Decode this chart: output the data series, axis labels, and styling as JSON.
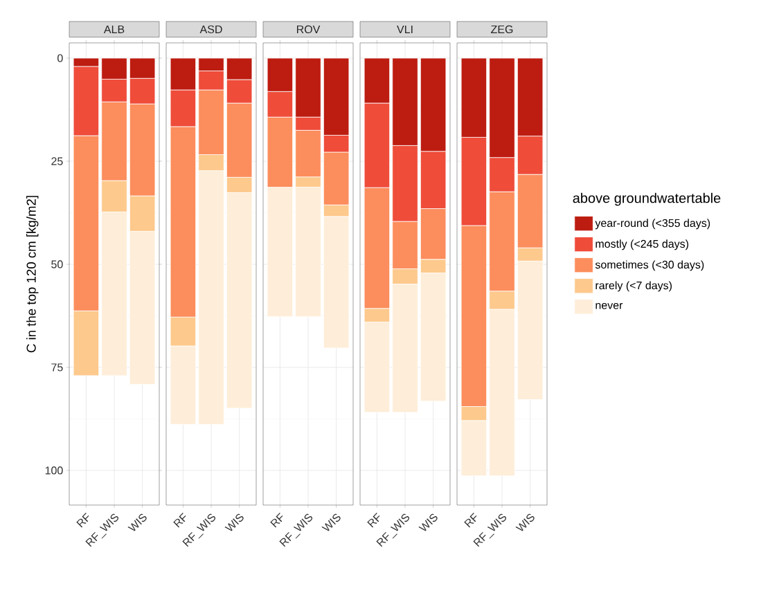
{
  "chart_data": [
    {
      "type": "bar",
      "stacked": true,
      "title": "ALB",
      "ylabel": "C in the top 120 cm [kg/m2]",
      "categories": [
        "RF",
        "RF_WIS",
        "WIS"
      ],
      "ylim": [
        108.4,
        -3.7
      ],
      "yticks": [
        0,
        25,
        50,
        75,
        100
      ],
      "grid": true,
      "legend": false,
      "series": [
        {
          "color": "#bd1c11",
          "values": [
            2.0,
            5.1,
            4.9
          ]
        },
        {
          "color": "#ef4c3a",
          "values": [
            16.8,
            5.5,
            6.2
          ]
        },
        {
          "color": "#fc8d5c",
          "values": [
            42.5,
            19.1,
            22.3
          ]
        },
        {
          "color": "#fdc98c",
          "values": [
            15.7,
            7.6,
            8.6
          ]
        },
        {
          "color": "#feedd8",
          "values": [
            null,
            39.7,
            37.1
          ]
        }
      ]
    },
    {
      "type": "bar",
      "stacked": true,
      "title": "ASD",
      "categories": [
        "RF",
        "RF_WIS",
        "WIS"
      ],
      "ylim": [
        108.4,
        -3.7
      ],
      "yticks": [
        0,
        25,
        50,
        75,
        100
      ],
      "grid": true,
      "legend": false,
      "tick_labels": "x",
      "series": [
        {
          "color": "#bd1c11",
          "values": [
            7.7,
            3.1,
            5.2
          ]
        },
        {
          "color": "#ef4c3a",
          "values": [
            8.9,
            4.6,
            5.7
          ]
        },
        {
          "color": "#fc8d5c",
          "values": [
            46.2,
            15.7,
            18.0
          ]
        },
        {
          "color": "#fdc98c",
          "values": [
            7.0,
            3.9,
            3.7
          ]
        },
        {
          "color": "#feedd8",
          "values": [
            19.0,
            61.5,
            52.3
          ]
        }
      ]
    },
    {
      "type": "bar",
      "stacked": true,
      "title": "ROV",
      "categories": [
        "RF",
        "RF_WIS",
        "WIS"
      ],
      "ylim": [
        108.4,
        -3.7
      ],
      "yticks": [
        0,
        25,
        50,
        75,
        100
      ],
      "grid": true,
      "legend": false,
      "tick_labels": "x",
      "series": [
        {
          "color": "#bd1c11",
          "values": [
            8.1,
            14.3,
            18.7
          ]
        },
        {
          "color": "#ef4c3a",
          "values": [
            6.2,
            3.2,
            4.1
          ]
        },
        {
          "color": "#fc8d5c",
          "values": [
            17.0,
            11.3,
            12.8
          ]
        },
        {
          "color": "#fdc98c",
          "values": [
            null,
            2.5,
            2.8
          ]
        },
        {
          "color": "#feedd8",
          "values": [
            31.4,
            31.4,
            31.9
          ]
        }
      ]
    },
    {
      "type": "bar",
      "stacked": true,
      "title": "VLI",
      "categories": [
        "RF",
        "RF_WIS",
        "WIS"
      ],
      "ylim": [
        108.4,
        -3.7
      ],
      "yticks": [
        0,
        25,
        50,
        75,
        100
      ],
      "grid": true,
      "legend": false,
      "tick_labels": "x",
      "series": [
        {
          "color": "#bd1c11",
          "values": [
            10.9,
            21.2,
            22.6
          ]
        },
        {
          "color": "#ef4c3a",
          "values": [
            20.5,
            18.4,
            13.9
          ]
        },
        {
          "color": "#fc8d5c",
          "values": [
            29.3,
            11.5,
            12.3
          ]
        },
        {
          "color": "#fdc98c",
          "values": [
            3.3,
            3.7,
            3.3
          ]
        },
        {
          "color": "#feedd8",
          "values": [
            21.9,
            31.1,
            31.1
          ]
        }
      ]
    },
    {
      "type": "bar",
      "stacked": true,
      "title": "ZEG",
      "legend_title": "above groundwatertable",
      "categories": [
        "RF",
        "RF_WIS",
        "WIS"
      ],
      "ylim": [
        108.4,
        -3.7
      ],
      "yticks": [
        0,
        25,
        50,
        75,
        100
      ],
      "grid": true,
      "legend": "right",
      "tick_labels": "x",
      "series": [
        {
          "name": "year-round (<355 days)",
          "color": "#bd1c11",
          "values": [
            19.2,
            24.1,
            18.9
          ]
        },
        {
          "name": "mostly (<245 days)",
          "color": "#ef4c3a",
          "values": [
            21.4,
            8.3,
            9.3
          ]
        },
        {
          "name": "sometimes (<30  days)",
          "color": "#fc8d5c",
          "values": [
            43.9,
            24.1,
            17.8
          ]
        },
        {
          "name": "rarely (<7  days)",
          "color": "#fdc98c",
          "values": [
            3.4,
            4.4,
            3.2
          ]
        },
        {
          "name": "never",
          "color": "#feedd8",
          "values": [
            13.4,
            40.4,
            33.6
          ]
        }
      ]
    }
  ]
}
